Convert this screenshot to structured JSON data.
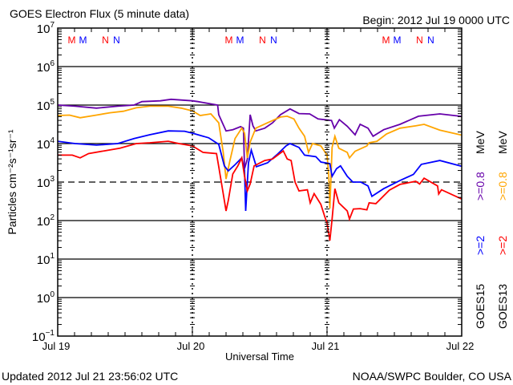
{
  "chart_data": {
    "type": "line",
    "title": "GOES Electron Flux (5 minute data)",
    "begin_label": "Begin: 2012 Jul 19 0000 UTC",
    "xlabel": "Universal Time",
    "ylabel": "Particles cm⁻²s⁻¹sr⁻¹",
    "x_unit": "hours since 2012 Jul 19 0000 UTC",
    "xlim": [
      0,
      72
    ],
    "x_ticks": [
      {
        "h": 0,
        "label": "Jul 19"
      },
      {
        "h": 24,
        "label": "Jul 20"
      },
      {
        "h": 48,
        "label": "Jul 21"
      },
      {
        "h": 72,
        "label": "Jul 22"
      }
    ],
    "yscale": "log",
    "ylim_exponent": [
      -1,
      7
    ],
    "y_tick_base": "10",
    "y_tick_exponents": [
      "7",
      "6",
      "5",
      "4",
      "3",
      "2",
      "1",
      "0",
      "−1"
    ],
    "threshold_exponent": 3,
    "grid": "horizontal at each decade; dashed at 10^3",
    "markers": [
      {
        "label": "M",
        "color": "#ff0000",
        "hours": [
          5,
          61,
          117
        ]
      },
      {
        "label": "M",
        "color": "#0000ff",
        "hours": [
          9,
          65,
          121
        ]
      },
      {
        "label": "N",
        "color": "#ff0000",
        "hours": [
          17,
          73,
          129
        ]
      },
      {
        "label": "N",
        "color": "#0000ff",
        "hours": [
          21,
          77,
          133
        ]
      }
    ],
    "legend": {
      "placement": "right, vertical",
      "columns": [
        {
          "sat": "GOES15",
          "e2": ">=2",
          "e08": ">=0.8",
          "unit": "MeV",
          "e2_color": "#0000ff",
          "e08_color": "#6600aa"
        },
        {
          "sat": "GOES13",
          "e2": ">=2",
          "e08": ">=0.8",
          "unit": "MeV",
          "e2_color": "#ff0000",
          "e08_color": "#ffa500"
        }
      ]
    },
    "series": [
      {
        "name": "GOES15 >=0.8 MeV",
        "color": "#6600aa",
        "log10_flux": [
          [
            0,
            5.0
          ],
          [
            3.1,
            4.97
          ],
          [
            6.9,
            4.92
          ],
          [
            10.7,
            4.97
          ],
          [
            13.6,
            5.0
          ],
          [
            15,
            5.09
          ],
          [
            18.3,
            5.11
          ],
          [
            20.2,
            5.15
          ],
          [
            24,
            5.11
          ],
          [
            25,
            5.09
          ],
          [
            28.5,
            5.0
          ],
          [
            28.7,
            4.75
          ],
          [
            30,
            4.33
          ],
          [
            31.2,
            4.36
          ],
          [
            32.6,
            4.44
          ],
          [
            33.1,
            4.4
          ],
          [
            33.3,
            3.35
          ],
          [
            33.8,
            3.6
          ],
          [
            34.3,
            4.75
          ],
          [
            34.8,
            4.46
          ],
          [
            35.3,
            4.33
          ],
          [
            36.9,
            4.4
          ],
          [
            38.3,
            4.54
          ],
          [
            39.7,
            4.75
          ],
          [
            41.4,
            4.9
          ],
          [
            43,
            4.78
          ],
          [
            44.9,
            4.77
          ],
          [
            46.4,
            4.64
          ],
          [
            48.8,
            4.6
          ],
          [
            49.3,
            4.4
          ],
          [
            50.2,
            4.62
          ],
          [
            51.6,
            4.45
          ],
          [
            53,
            4.23
          ],
          [
            53.9,
            4.5
          ],
          [
            55.3,
            4.4
          ],
          [
            56.2,
            4.19
          ],
          [
            58.1,
            4.36
          ],
          [
            61,
            4.5
          ],
          [
            64.3,
            4.71
          ],
          [
            68.1,
            4.77
          ],
          [
            71.7,
            4.71
          ],
          [
            72,
            4.7
          ]
        ]
      },
      {
        "name": "GOES13 >=0.8 MeV",
        "color": "#ffa500",
        "log10_flux": [
          [
            0,
            4.73
          ],
          [
            2.1,
            4.74
          ],
          [
            4,
            4.67
          ],
          [
            6.9,
            4.74
          ],
          [
            9.3,
            4.8
          ],
          [
            11.7,
            4.84
          ],
          [
            14,
            4.93
          ],
          [
            16.4,
            4.97
          ],
          [
            19.7,
            4.97
          ],
          [
            22,
            4.92
          ],
          [
            24,
            4.85
          ],
          [
            25.4,
            4.73
          ],
          [
            27.3,
            4.77
          ],
          [
            28.7,
            4.54
          ],
          [
            29.5,
            3.77
          ],
          [
            30,
            3.08
          ],
          [
            30.7,
            3.56
          ],
          [
            31.6,
            4.13
          ],
          [
            32.8,
            4.4
          ],
          [
            33.3,
            4.27
          ],
          [
            33.8,
            3.63
          ],
          [
            34.3,
            4.04
          ],
          [
            35.3,
            4.4
          ],
          [
            37.4,
            4.54
          ],
          [
            39.7,
            4.69
          ],
          [
            40.9,
            4.71
          ],
          [
            42.1,
            4.64
          ],
          [
            43,
            4.4
          ],
          [
            44,
            4.19
          ],
          [
            44.7,
            3.77
          ],
          [
            45.4,
            4.0
          ],
          [
            46.9,
            3.94
          ],
          [
            48,
            3.7
          ],
          [
            48.3,
            3.2
          ],
          [
            48.5,
            2.31
          ],
          [
            48.9,
            3.9
          ],
          [
            49.4,
            4.19
          ],
          [
            50.1,
            3.88
          ],
          [
            51.6,
            3.77
          ],
          [
            52,
            3.63
          ],
          [
            53,
            3.8
          ],
          [
            55.1,
            3.94
          ],
          [
            55.5,
            4.02
          ],
          [
            56.9,
            4.06
          ],
          [
            58.6,
            4.25
          ],
          [
            61,
            4.4
          ],
          [
            63.8,
            4.46
          ],
          [
            65.3,
            4.5
          ],
          [
            68.1,
            4.35
          ],
          [
            71.7,
            4.23
          ],
          [
            72,
            4.22
          ]
        ]
      },
      {
        "name": "GOES15 >=2 MeV",
        "color": "#0000ff",
        "log10_flux": [
          [
            0,
            4.06
          ],
          [
            3.1,
            4.0
          ],
          [
            6.9,
            3.96
          ],
          [
            10.7,
            4.0
          ],
          [
            13.6,
            4.13
          ],
          [
            16.4,
            4.23
          ],
          [
            19.7,
            4.33
          ],
          [
            22.6,
            4.32
          ],
          [
            24,
            4.27
          ],
          [
            26.9,
            4.15
          ],
          [
            28.7,
            3.98
          ],
          [
            29.7,
            3.42
          ],
          [
            30.4,
            3.29
          ],
          [
            31.6,
            3.45
          ],
          [
            32.8,
            3.63
          ],
          [
            33.3,
            3.3
          ],
          [
            33.5,
            2.25
          ],
          [
            34,
            3.5
          ],
          [
            34.5,
            3.83
          ],
          [
            35.4,
            3.4
          ],
          [
            37.4,
            3.5
          ],
          [
            39.2,
            3.73
          ],
          [
            40.7,
            3.94
          ],
          [
            41.4,
            4.0
          ],
          [
            43,
            3.9
          ],
          [
            44,
            3.7
          ],
          [
            46,
            3.66
          ],
          [
            46.9,
            3.52
          ],
          [
            48.5,
            3.48
          ],
          [
            48.9,
            3.15
          ],
          [
            49.7,
            3.35
          ],
          [
            50.4,
            3.42
          ],
          [
            51.6,
            3.15
          ],
          [
            52.6,
            3.0
          ],
          [
            54,
            3.0
          ],
          [
            55.3,
            2.9
          ],
          [
            56,
            2.63
          ],
          [
            58.1,
            2.83
          ],
          [
            61,
            3.04
          ],
          [
            63.4,
            3.2
          ],
          [
            64.8,
            3.46
          ],
          [
            68.1,
            3.56
          ],
          [
            71.7,
            3.42
          ],
          [
            72,
            3.41
          ]
        ]
      },
      {
        "name": "GOES13 >=2 MeV",
        "color": "#ff0000",
        "log10_flux": [
          [
            0,
            3.7
          ],
          [
            2.6,
            3.7
          ],
          [
            4,
            3.63
          ],
          [
            5.5,
            3.74
          ],
          [
            8.3,
            3.81
          ],
          [
            11.1,
            3.88
          ],
          [
            14,
            4.0
          ],
          [
            16.4,
            4.02
          ],
          [
            19.7,
            4.06
          ],
          [
            21.6,
            4.0
          ],
          [
            24,
            3.94
          ],
          [
            25.9,
            3.77
          ],
          [
            28.3,
            3.74
          ],
          [
            28.7,
            3.4
          ],
          [
            29.7,
            2.52
          ],
          [
            30,
            2.25
          ],
          [
            30.4,
            2.52
          ],
          [
            31.2,
            3.21
          ],
          [
            32.1,
            3.42
          ],
          [
            32.8,
            3.63
          ],
          [
            33.3,
            3.15
          ],
          [
            33.8,
            2.77
          ],
          [
            34.3,
            2.95
          ],
          [
            35,
            3.42
          ],
          [
            36.9,
            3.56
          ],
          [
            38.3,
            3.6
          ],
          [
            40.2,
            3.81
          ],
          [
            40.9,
            3.6
          ],
          [
            41.6,
            3.56
          ],
          [
            42.3,
            3.0
          ],
          [
            43,
            2.77
          ],
          [
            44.5,
            2.8
          ],
          [
            45,
            2.46
          ],
          [
            45.7,
            2.7
          ],
          [
            46.9,
            2.42
          ],
          [
            47.6,
            2.1
          ],
          [
            48,
            1.94
          ],
          [
            48.5,
            1.48
          ],
          [
            48.9,
            2.04
          ],
          [
            49.4,
            2.83
          ],
          [
            50.1,
            2.46
          ],
          [
            51.6,
            2.25
          ],
          [
            52,
            2.04
          ],
          [
            52.7,
            2.3
          ],
          [
            53.9,
            2.31
          ],
          [
            55.1,
            2.28
          ],
          [
            55.5,
            2.46
          ],
          [
            56.7,
            2.44
          ],
          [
            59.1,
            2.79
          ],
          [
            61,
            2.94
          ],
          [
            63.8,
            3.02
          ],
          [
            64.5,
            2.95
          ],
          [
            65.3,
            3.1
          ],
          [
            67.7,
            2.9
          ],
          [
            67.9,
            2.69
          ],
          [
            68.4,
            2.8
          ],
          [
            71.7,
            2.58
          ],
          [
            72,
            2.56
          ]
        ]
      }
    ]
  },
  "footer": {
    "updated": "Updated 2012 Jul 21 23:56:02 UTC",
    "credit": "NOAA/SWPC Boulder, CO USA"
  }
}
